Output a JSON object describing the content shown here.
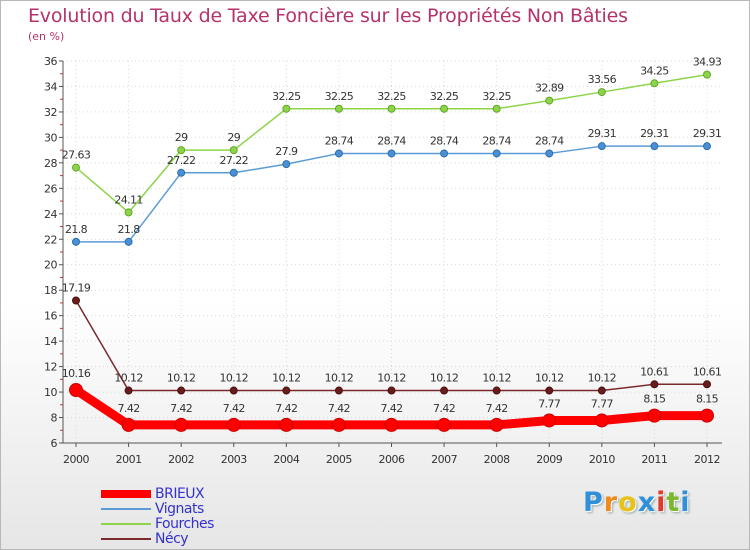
{
  "chart_data": {
    "type": "line",
    "title": "Evolution du Taux de Taxe Foncière sur les Propriétés Non Bâties",
    "ylabel": "(en %)",
    "xlabel": "",
    "x": [
      "2000",
      "2001",
      "2002",
      "2003",
      "2004",
      "2005",
      "2006",
      "2007",
      "2008",
      "2009",
      "2010",
      "2011",
      "2012"
    ],
    "ylim": [
      6,
      36
    ],
    "yticks": [
      6,
      8,
      10,
      12,
      14,
      16,
      18,
      20,
      22,
      24,
      26,
      28,
      30,
      32,
      34,
      36
    ],
    "grid": true,
    "legend_position": "bottom-left",
    "series": [
      {
        "name": "BRIEUX",
        "color": "#ff0000",
        "values": [
          10.16,
          7.42,
          7.42,
          7.42,
          7.42,
          7.42,
          7.42,
          7.42,
          7.42,
          7.77,
          7.77,
          8.15,
          8.15
        ],
        "labels": [
          "10.16",
          "7.42",
          "7.42",
          "7.42",
          "7.42",
          "7.42",
          "7.42",
          "7.42",
          "7.42",
          "7.77",
          "7.77",
          "8.15",
          "8.15"
        ]
      },
      {
        "name": "Vignats",
        "color": "#5b9bd5",
        "values": [
          21.8,
          21.8,
          27.22,
          27.22,
          27.9,
          28.74,
          28.74,
          28.74,
          28.74,
          28.74,
          29.31,
          29.31,
          29.31
        ],
        "labels": [
          "21.8",
          "21.8",
          "27.22",
          "27.22",
          "27.9",
          "28.74",
          "28.74",
          "28.74",
          "28.74",
          "28.74",
          "29.31",
          "29.31",
          "29.31"
        ]
      },
      {
        "name": "Fourches",
        "color": "#8ed44a",
        "values": [
          27.63,
          24.11,
          29,
          29,
          32.25,
          32.25,
          32.25,
          32.25,
          32.25,
          32.89,
          33.56,
          34.25,
          34.93
        ],
        "labels": [
          "27.63",
          "24.11",
          "29",
          "29",
          "32.25",
          "32.25",
          "32.25",
          "32.25",
          "32.25",
          "32.89",
          "33.56",
          "34.25",
          "34.93"
        ]
      },
      {
        "name": "Nécy",
        "color": "#7a2a2a",
        "values": [
          17.19,
          10.12,
          10.12,
          10.12,
          10.12,
          10.12,
          10.12,
          10.12,
          10.12,
          10.12,
          10.12,
          10.61,
          10.61
        ],
        "labels": [
          "17.19",
          "10.12",
          "10.12",
          "10.12",
          "10.12",
          "10.12",
          "10.12",
          "10.12",
          "10.12",
          "10.12",
          "10.12",
          "10.61",
          "10.61"
        ]
      }
    ]
  },
  "legend": {
    "items": [
      "BRIEUX",
      "Vignats",
      "Fourches",
      "Nécy"
    ]
  },
  "logo": {
    "letters": [
      "P",
      "r",
      "o",
      "x",
      "i",
      "t",
      "i"
    ],
    "colors": [
      "#2f8fd8",
      "#f08a1c",
      "#e8c21a",
      "#2f8fd8",
      "#e23a2a",
      "#7ab82e",
      "#2f8fd8"
    ]
  }
}
